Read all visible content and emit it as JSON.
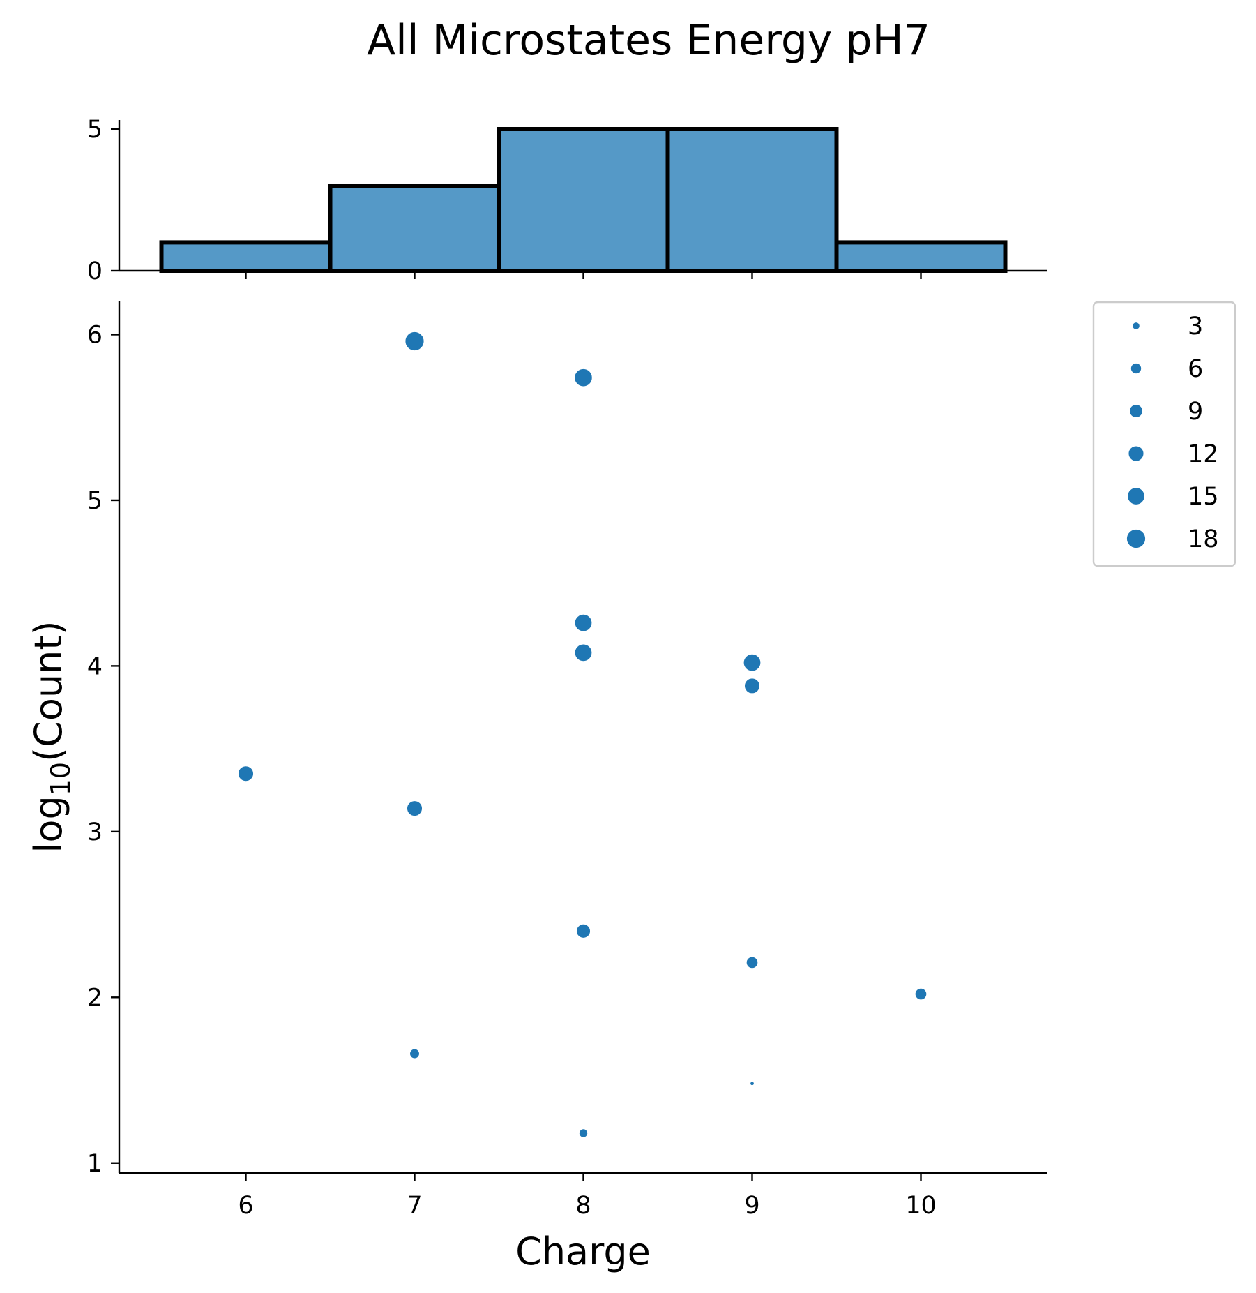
{
  "chart_data": {
    "type": "scatter",
    "title": "All Microstates Energy pH7",
    "xlabel": "Charge",
    "ylabel_main": "log",
    "ylabel_sub": "10",
    "ylabel_tail": "(Count)",
    "xlim": [
      5.25,
      10.75
    ],
    "ylim": [
      0.94,
      6.2
    ],
    "xticks": [
      "6",
      "7",
      "8",
      "9",
      "10"
    ],
    "yticks": [
      "1",
      "2",
      "3",
      "4",
      "5",
      "6"
    ],
    "color": "#1f77b4",
    "points": [
      {
        "x": 7,
        "y": 5.96,
        "size": 18
      },
      {
        "x": 8,
        "y": 5.74,
        "size": 16
      },
      {
        "x": 8,
        "y": 4.26,
        "size": 15
      },
      {
        "x": 8,
        "y": 4.08,
        "size": 15
      },
      {
        "x": 9,
        "y": 4.02,
        "size": 15
      },
      {
        "x": 9,
        "y": 3.88,
        "size": 12
      },
      {
        "x": 6,
        "y": 3.35,
        "size": 12
      },
      {
        "x": 7,
        "y": 3.14,
        "size": 12
      },
      {
        "x": 8,
        "y": 2.4,
        "size": 10
      },
      {
        "x": 9,
        "y": 2.21,
        "size": 9
      },
      {
        "x": 9,
        "y": 2.21,
        "size": 7
      },
      {
        "x": 10,
        "y": 2.02,
        "size": 7
      },
      {
        "x": 7,
        "y": 1.66,
        "size": 5
      },
      {
        "x": 9,
        "y": 1.48,
        "size": 1
      },
      {
        "x": 8,
        "y": 1.18,
        "size": 4
      }
    ],
    "legend": {
      "placement": "upper-right-outside",
      "entries": [
        "3",
        "6",
        "9",
        "12",
        "15",
        "18"
      ],
      "sizes": [
        3,
        6,
        9,
        12,
        15,
        18
      ]
    },
    "histogram": {
      "type": "bar",
      "bins": [
        {
          "from": 5.5,
          "to": 6.5,
          "count": 1
        },
        {
          "from": 6.5,
          "to": 7.5,
          "count": 3
        },
        {
          "from": 7.5,
          "to": 8.5,
          "count": 5
        },
        {
          "from": 8.5,
          "to": 9.5,
          "count": 5
        },
        {
          "from": 9.5,
          "to": 10.5,
          "count": 1
        }
      ],
      "ylim": [
        0,
        5
      ],
      "yticks": [
        "0",
        "5"
      ],
      "color": "#5599c7"
    }
  }
}
